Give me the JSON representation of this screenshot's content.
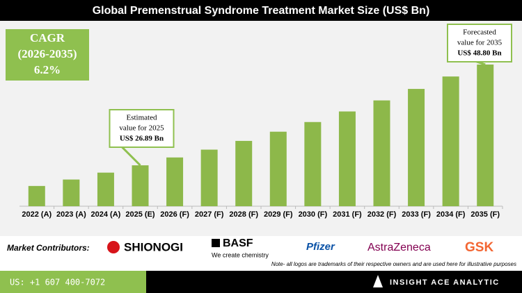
{
  "chart_data": {
    "type": "bar",
    "title": "Global Premenstrual Syndrome Treatment Market Size (US$ Bn)",
    "categories": [
      "2022 (A)",
      "2023 (A)",
      "2024 (A)",
      "2025 (E)",
      "2026 (F)",
      "2027 (F)",
      "2028 (F)",
      "2029 (F)",
      "2030 (F)",
      "2031 (F)",
      "2032 (F)",
      "2033 (F)",
      "2034 (F)",
      "2035 (F)"
    ],
    "values": [
      22.4,
      23.8,
      25.3,
      26.89,
      28.6,
      30.3,
      32.2,
      34.2,
      36.3,
      38.6,
      41.0,
      43.5,
      46.2,
      48.8
    ],
    "color": "#8db84a",
    "ylim": [
      18,
      50
    ],
    "cagr": [
      "CAGR",
      "(2026-2035)",
      "6.2%"
    ],
    "annotations": [
      {
        "index": 3,
        "lines": [
          "Estimated",
          "value for 2025",
          "US$ 26.89 Bn"
        ]
      },
      {
        "index": 13,
        "lines": [
          "Forecasted",
          "value for 2035",
          "US$ 48.80 Bn"
        ]
      }
    ]
  },
  "footer": {
    "contributors_label": "Market Contributors:",
    "logos": [
      "SHIONOGI",
      "BASF",
      "We create chemistry",
      "Pfizer",
      "AstraZeneca",
      "GSK"
    ],
    "note": "Note- all logos are trademarks of their respective owners and are used here for illustrative purposes",
    "phone": "US: +1 607 400-7072",
    "brand": "INSIGHT ACE ANALYTIC"
  }
}
